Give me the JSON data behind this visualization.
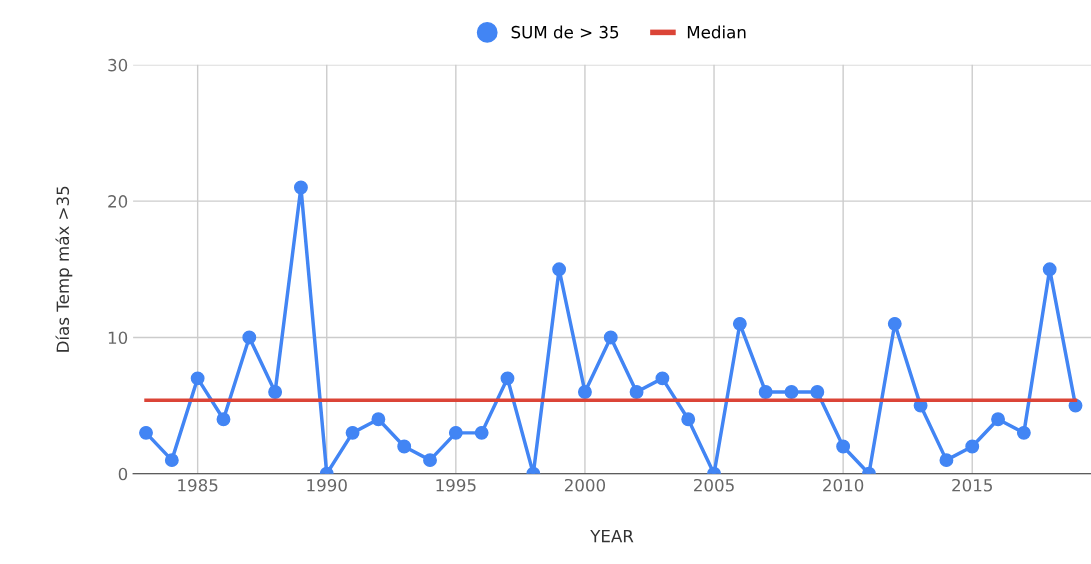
{
  "chart_data": {
    "type": "line",
    "xlabel": "YEAR",
    "ylabel": "Días Temp máx >35",
    "x": [
      1983,
      1984,
      1985,
      1986,
      1987,
      1988,
      1989,
      1990,
      1991,
      1992,
      1993,
      1994,
      1995,
      1996,
      1997,
      1998,
      1999,
      2000,
      2001,
      2002,
      2003,
      2004,
      2005,
      2006,
      2007,
      2008,
      2009,
      2010,
      2011,
      2012,
      2013,
      2014,
      2015,
      2016,
      2017,
      2018,
      2019
    ],
    "series": [
      {
        "name": "SUM de > 35",
        "color": "#4285f4",
        "values": [
          3,
          1,
          7,
          4,
          10,
          6,
          21,
          0,
          3,
          4,
          2,
          1,
          3,
          3,
          7,
          0,
          15,
          6,
          10,
          6,
          7,
          4,
          0,
          11,
          6,
          6,
          6,
          2,
          0,
          11,
          5,
          1,
          2,
          4,
          3,
          15,
          5
        ]
      },
      {
        "name": "Median",
        "color": "#db4437",
        "marker": "none",
        "values": [
          5.4,
          5.4,
          5.4,
          5.4,
          5.4,
          5.4,
          5.4,
          5.4,
          5.4,
          5.4,
          5.4,
          5.4,
          5.4,
          5.4,
          5.4,
          5.4,
          5.4,
          5.4,
          5.4,
          5.4,
          5.4,
          5.4,
          5.4,
          5.4,
          5.4,
          5.4,
          5.4,
          5.4,
          5.4,
          5.4,
          5.4,
          5.4,
          5.4,
          5.4,
          5.4,
          5.4,
          5.4
        ]
      }
    ],
    "xlim": [
      1982.5,
      2019.6
    ],
    "xticks": [
      1985,
      1990,
      1995,
      2000,
      2005,
      2010,
      2015
    ],
    "ylim": [
      0,
      30
    ],
    "yticks": [
      0,
      10,
      20,
      30
    ],
    "grid": true,
    "legend": "top",
    "marker": "circle",
    "line_style": "solid"
  }
}
